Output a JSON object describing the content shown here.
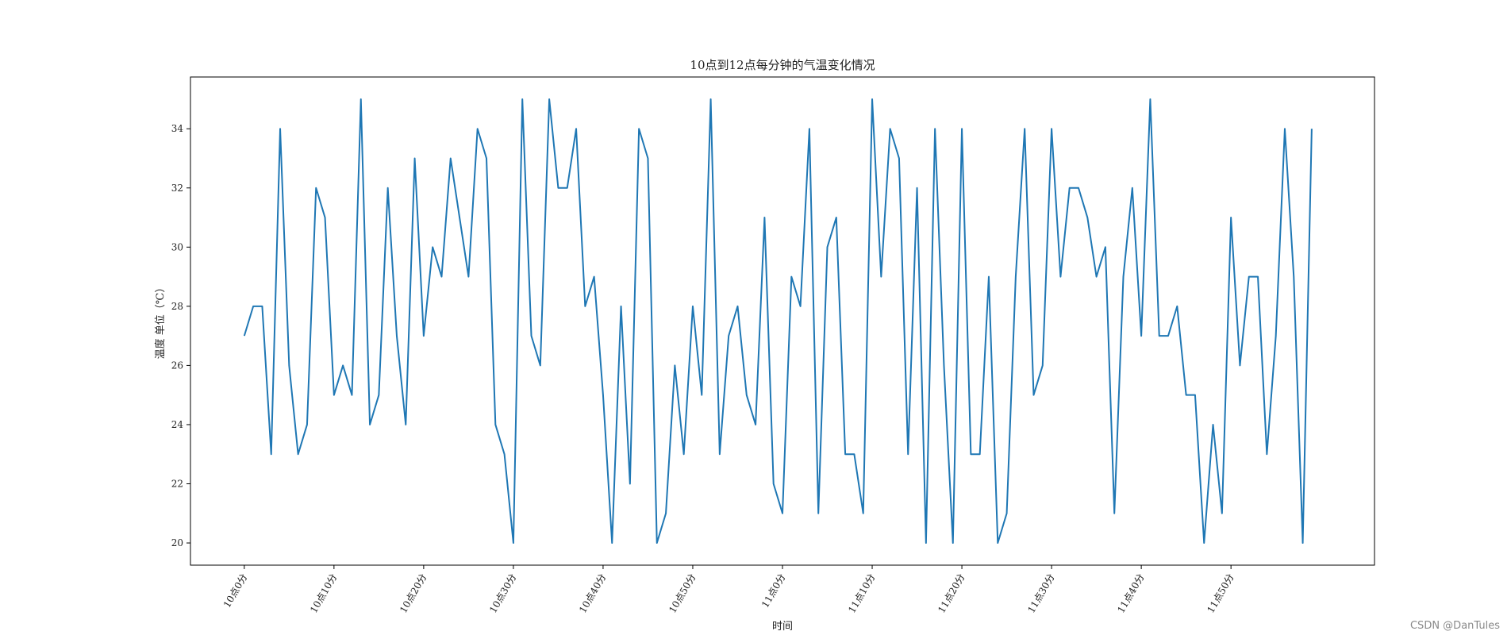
{
  "chart_data": {
    "type": "line",
    "title": "10点到12点每分钟的气温变化情况",
    "xlabel": "时间",
    "ylabel": "温度 单位（℃）",
    "ylim": [
      19.25,
      35.75
    ],
    "xlim": [
      -6,
      126
    ],
    "yticks": [
      20,
      22,
      24,
      26,
      28,
      30,
      32,
      34
    ],
    "xtick_positions": [
      0,
      10,
      20,
      30,
      40,
      50,
      60,
      70,
      80,
      90,
      100,
      110
    ],
    "xtick_labels": [
      "10点0分",
      "10点10分",
      "10点20分",
      "10点30分",
      "10点40分",
      "10点50分",
      "11点0分",
      "11点10分",
      "11点20分",
      "11点30分",
      "11点40分",
      "11点50分"
    ],
    "grid": false,
    "line_color": "#1f77b4",
    "series": [
      {
        "values": [
          27,
          28,
          28,
          23,
          34,
          26,
          23,
          24,
          32,
          31,
          25,
          26,
          25,
          35,
          24,
          25,
          32,
          27,
          24,
          33,
          27,
          30,
          29,
          33,
          31,
          29,
          34,
          33,
          24,
          23,
          20,
          35,
          27,
          26,
          35,
          32,
          32,
          34,
          28,
          29,
          25,
          20,
          28,
          22,
          34,
          33,
          20,
          21,
          26,
          23,
          28,
          25,
          35,
          23,
          27,
          28,
          25,
          24,
          31,
          22,
          21,
          29,
          28,
          34,
          21,
          30,
          31,
          23,
          23,
          21,
          35,
          29,
          34,
          33,
          23,
          32,
          20,
          34,
          26,
          20,
          34,
          23,
          23,
          29,
          20,
          21,
          29,
          34,
          25,
          26,
          34,
          29,
          32,
          32,
          31,
          29,
          30,
          21,
          29,
          32,
          27,
          35,
          27,
          27,
          28,
          25,
          25,
          20,
          24,
          21,
          31,
          26,
          29,
          29,
          23,
          27,
          34,
          29,
          20,
          34
        ]
      }
    ]
  },
  "watermark": "CSDN @DanTules"
}
